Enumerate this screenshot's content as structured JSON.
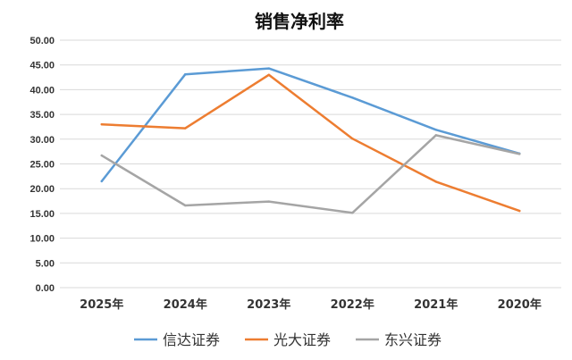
{
  "chart_data": {
    "type": "line",
    "title": "销售净利率",
    "categories": [
      "2025年",
      "2024年",
      "2023年",
      "2022年",
      "2021年",
      "2020年"
    ],
    "ylim": [
      0,
      50
    ],
    "yticks": [
      "0.00",
      "5.00",
      "10.00",
      "15.00",
      "20.00",
      "25.00",
      "30.00",
      "35.00",
      "40.00",
      "45.00",
      "50.00"
    ],
    "grid": true,
    "legend_position": "bottom",
    "series": [
      {
        "name": "信达证券",
        "color": "#5b9bd5",
        "values": [
          21.5,
          43.1,
          44.3,
          38.4,
          31.9,
          27.1
        ]
      },
      {
        "name": "光大证券",
        "color": "#ed7d31",
        "values": [
          33.0,
          32.2,
          43.0,
          30.1,
          21.4,
          15.5
        ]
      },
      {
        "name": "东兴证券",
        "color": "#a5a5a5",
        "values": [
          26.7,
          16.6,
          17.4,
          15.1,
          30.8,
          27.0
        ]
      }
    ]
  }
}
